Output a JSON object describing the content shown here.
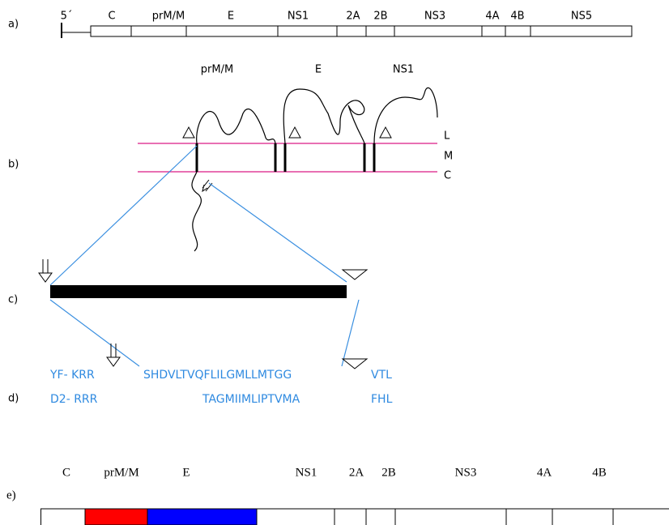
{
  "panels": {
    "a": {
      "label": "a)",
      "segments": [
        "5´",
        "C",
        "prM/M",
        "E",
        "NS1",
        "2A",
        "2B",
        "NS3",
        "4A",
        "4B",
        "NS5"
      ]
    },
    "b": {
      "label": "b)",
      "proteins": [
        "prM/M",
        "E",
        "NS1"
      ],
      "layers": [
        "L",
        "M",
        "C"
      ]
    },
    "c": {
      "label": "c)"
    },
    "d": {
      "label": "d)",
      "rows": [
        [
          "YF- KRR",
          "SHDVLTVQFLILGMLLMTGG",
          "VTL"
        ],
        [
          "D2- RRR",
          "TAGMIIMLIPTVMA",
          "FHL"
        ]
      ]
    },
    "e": {
      "label": "e)",
      "segments": [
        "C",
        "prM/M",
        "E",
        "NS1",
        "2A",
        "2B",
        "NS3",
        "4A",
        "4B"
      ]
    }
  }
}
